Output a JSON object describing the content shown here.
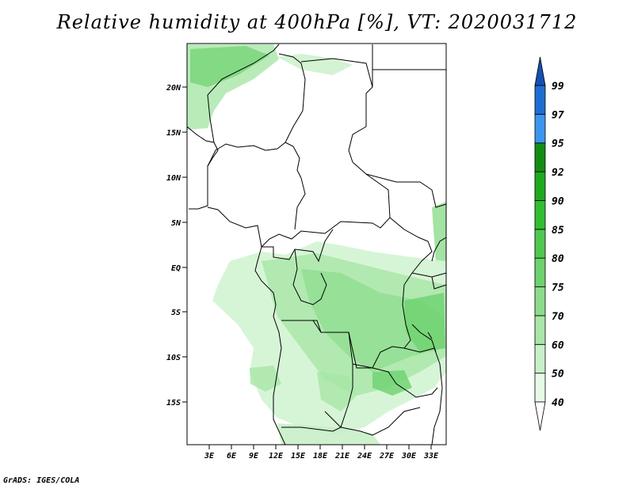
{
  "title": "Relative humidity at 400hPa [%], VT: 2020031712",
  "credit": "GrADS: IGES/COLA",
  "map": {
    "lat_labels": [
      "20N",
      "15N",
      "10N",
      "5N",
      "EQ",
      "5S",
      "10S",
      "15S"
    ],
    "lon_labels": [
      "3E",
      "6E",
      "9E",
      "12E",
      "15E",
      "18E",
      "21E",
      "24E",
      "27E",
      "30E",
      "33E"
    ]
  },
  "colorbar": {
    "levels": [
      "40",
      "50",
      "60",
      "70",
      "75",
      "80",
      "85",
      "90",
      "92",
      "95",
      "97",
      "99"
    ],
    "colors": [
      "#ffffff",
      "#e6fae6",
      "#c8f0c8",
      "#aae6aa",
      "#8cdc8c",
      "#6ed26e",
      "#50c850",
      "#32be32",
      "#1eaa1e",
      "#148c14",
      "#3c96f0",
      "#1e6ed2",
      "#1450b4"
    ]
  }
}
